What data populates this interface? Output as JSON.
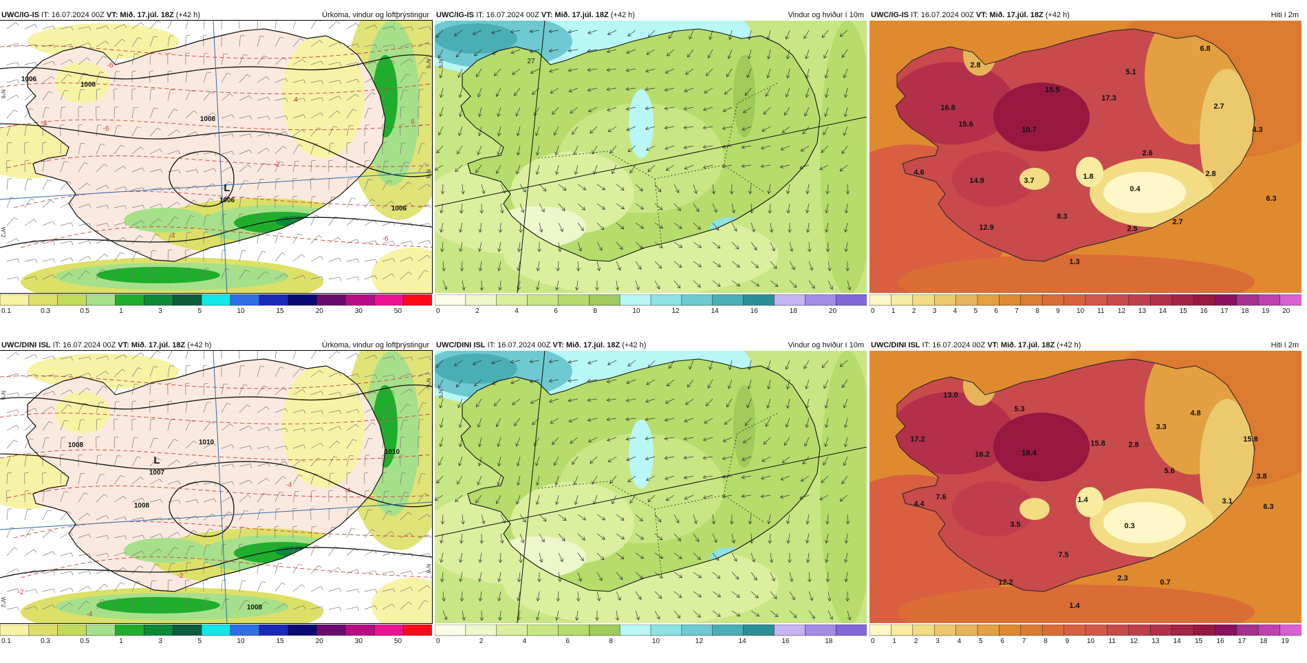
{
  "panels": [
    {
      "id": "r1c1",
      "kind": "precip",
      "model": "UWC/IG-IS",
      "it": "IT: 16.07.2024 00Z",
      "vt_label": "VT:",
      "vt": "Mið. 17.júl. 18Z",
      "lead": "(+42 h)",
      "title": "Úrkoma, vindur og loftþrýstingur",
      "labels": [
        "1006",
        "1008",
        "1008",
        "1006",
        "L",
        "1006",
        "-6",
        "-6",
        "-4",
        "6",
        "4",
        "-6",
        "-2",
        "-4"
      ],
      "edge_labels": [
        "N°6",
        "N°6",
        "W°2",
        "N°6"
      ],
      "legend": {
        "colors": [
          "#f6f3a4",
          "#dde067",
          "#c3dc58",
          "#a6e08a",
          "#1fae2b",
          "#0b8a3a",
          "#0b5d3d",
          "#14e7e7",
          "#2e6fe6",
          "#1a29b8",
          "#0a0a74",
          "#6a0a6e",
          "#b80c84",
          "#ee1292",
          "#ff0a19"
        ],
        "ticks": [
          "0.1",
          "0.3",
          "0.5",
          "1",
          "3",
          "5",
          "10",
          "15",
          "20",
          "30",
          "50"
        ]
      }
    },
    {
      "id": "r1c2",
      "kind": "wind",
      "model": "UWC/IG-IS",
      "it": "IT: 16.07.2024 00Z",
      "vt_label": "VT:",
      "vt": "Mið. 17.júl. 18Z",
      "lead": "(+42 h)",
      "title": "Vindur og hviður í 10m",
      "labels": [
        "27"
      ],
      "edge_labels": [
        "N°6"
      ],
      "legend": {
        "colors": [
          "#fbfde9",
          "#edf7cc",
          "#dbef9f",
          "#c8e683",
          "#b6dc6c",
          "#9fcb5a",
          "#b8f7f5",
          "#8de3e4",
          "#6ecad0",
          "#4aaeb5",
          "#2a8e95",
          "#c4b4f2",
          "#a28ce6",
          "#8066d8"
        ],
        "ticks": [
          "0",
          "2",
          "4",
          "6",
          "8",
          "10",
          "12",
          "14",
          "16",
          "18",
          "20"
        ]
      }
    },
    {
      "id": "r1c3",
      "kind": "temp",
      "model": "UWC/IG-IS",
      "it": "IT: 16.07.2024 00Z",
      "vt_label": "VT:",
      "vt": "Mið. 17.júl. 18Z",
      "lead": "(+42 h)",
      "title": "Hiti í 2m",
      "labels": [
        "2.8",
        "6.8",
        "15.5",
        "17.3",
        "5.1",
        "16.8",
        "15.6",
        "10.7",
        "2.7",
        "4.3",
        "2.6",
        "4.6",
        "14.9",
        "3.7",
        "1.8",
        "2.8",
        "0.4",
        "6.3",
        "8.3",
        "12.9",
        "2.5",
        "2.7",
        "1.3"
      ],
      "legend": {
        "colors": [
          "#fdf7c8",
          "#f8eca0",
          "#f2dd84",
          "#ecc96c",
          "#e6b45a",
          "#e4a040",
          "#e08a30",
          "#dc7a30",
          "#da6c36",
          "#d86040",
          "#d2584a",
          "#c84a4c",
          "#be3e4c",
          "#b2304a",
          "#a42446",
          "#961840",
          "#8c1060",
          "#a43090",
          "#c040b0",
          "#d860d0"
        ],
        "ticks": [
          "0",
          "1",
          "2",
          "3",
          "4",
          "5",
          "6",
          "7",
          "8",
          "9",
          "10",
          "11",
          "12",
          "13",
          "14",
          "15",
          "16",
          "17",
          "18",
          "19",
          "20"
        ]
      }
    },
    {
      "id": "r2c1",
      "kind": "precip",
      "model": "UWC/DINI ISL",
      "it": "IT: 16.07.2024 00Z",
      "vt_label": "VT:",
      "vt": "Mið. 17.júl. 18Z",
      "lead": "(+42 h)",
      "title": "Úrkoma, vindur og loftþrýstingur",
      "labels": [
        "1010",
        "1008",
        "L",
        "1007",
        "1008",
        "1010",
        "1008",
        "-4",
        "-4",
        "-2",
        "-2",
        "-4"
      ],
      "edge_labels": [
        "N°6",
        "N°6",
        "N°6",
        "W°2"
      ],
      "legend": {
        "colors": [
          "#f6f3a4",
          "#dde067",
          "#c3dc58",
          "#a6e08a",
          "#1fae2b",
          "#0b8a3a",
          "#0b5d3d",
          "#14e7e7",
          "#2e6fe6",
          "#1a29b8",
          "#0a0a74",
          "#6a0a6e",
          "#b80c84",
          "#ee1292",
          "#ff0a19"
        ],
        "ticks": [
          "0.1",
          "0.3",
          "0.5",
          "1",
          "3",
          "5",
          "10",
          "15",
          "20",
          "30",
          "50"
        ]
      }
    },
    {
      "id": "r2c2",
      "kind": "wind",
      "model": "UWC/DINI ISL",
      "it": "IT: 16.07.2024 00Z",
      "vt_label": "VT:",
      "vt": "Mið. 17.júl. 18Z",
      "lead": "(+42 h)",
      "title": "Vindur og hviður í 10m",
      "labels": [],
      "edge_labels": [
        "N°6"
      ],
      "legend": {
        "colors": [
          "#fbfde9",
          "#edf7cc",
          "#dbef9f",
          "#c8e683",
          "#b6dc6c",
          "#9fcb5a",
          "#b8f7f5",
          "#8de3e4",
          "#6ecad0",
          "#4aaeb5",
          "#2a8e95",
          "#c4b4f2",
          "#a28ce6",
          "#8066d8"
        ],
        "ticks": [
          "0",
          "2",
          "4",
          "6",
          "8",
          "10",
          "12",
          "14",
          "16",
          "18"
        ]
      }
    },
    {
      "id": "r2c3",
      "kind": "temp",
      "model": "UWC/DINI ISL",
      "it": "IT: 16.07.2024 00Z",
      "vt_label": "VT:",
      "vt": "Mið. 17.júl. 18Z",
      "lead": "(+42 h)",
      "title": "Hiti í 2m",
      "labels": [
        "13.0",
        "5.3",
        "4.8",
        "3.3",
        "15.8",
        "17.2",
        "15.8",
        "2.8",
        "16.2",
        "18.4",
        "5.6",
        "3.8",
        "7.6",
        "4.4",
        "1.4",
        "3.1",
        "6.3",
        "3.5",
        "0.3",
        "7.5",
        "2.3",
        "0.7",
        "12.2",
        "1.4"
      ],
      "legend": {
        "colors": [
          "#fdf7c8",
          "#f8eca0",
          "#f2dd84",
          "#ecc96c",
          "#e6b45a",
          "#e4a040",
          "#e08a30",
          "#dc7a30",
          "#da6c36",
          "#d86040",
          "#d2584a",
          "#c84a4c",
          "#be3e4c",
          "#b2304a",
          "#a42446",
          "#961840",
          "#8c1060",
          "#a43090",
          "#c040b0",
          "#d860d0"
        ],
        "ticks": [
          "0",
          "1",
          "2",
          "3",
          "4",
          "5",
          "6",
          "7",
          "8",
          "9",
          "10",
          "11",
          "12",
          "13",
          "14",
          "15",
          "16",
          "17",
          "18",
          "19"
        ]
      }
    }
  ]
}
